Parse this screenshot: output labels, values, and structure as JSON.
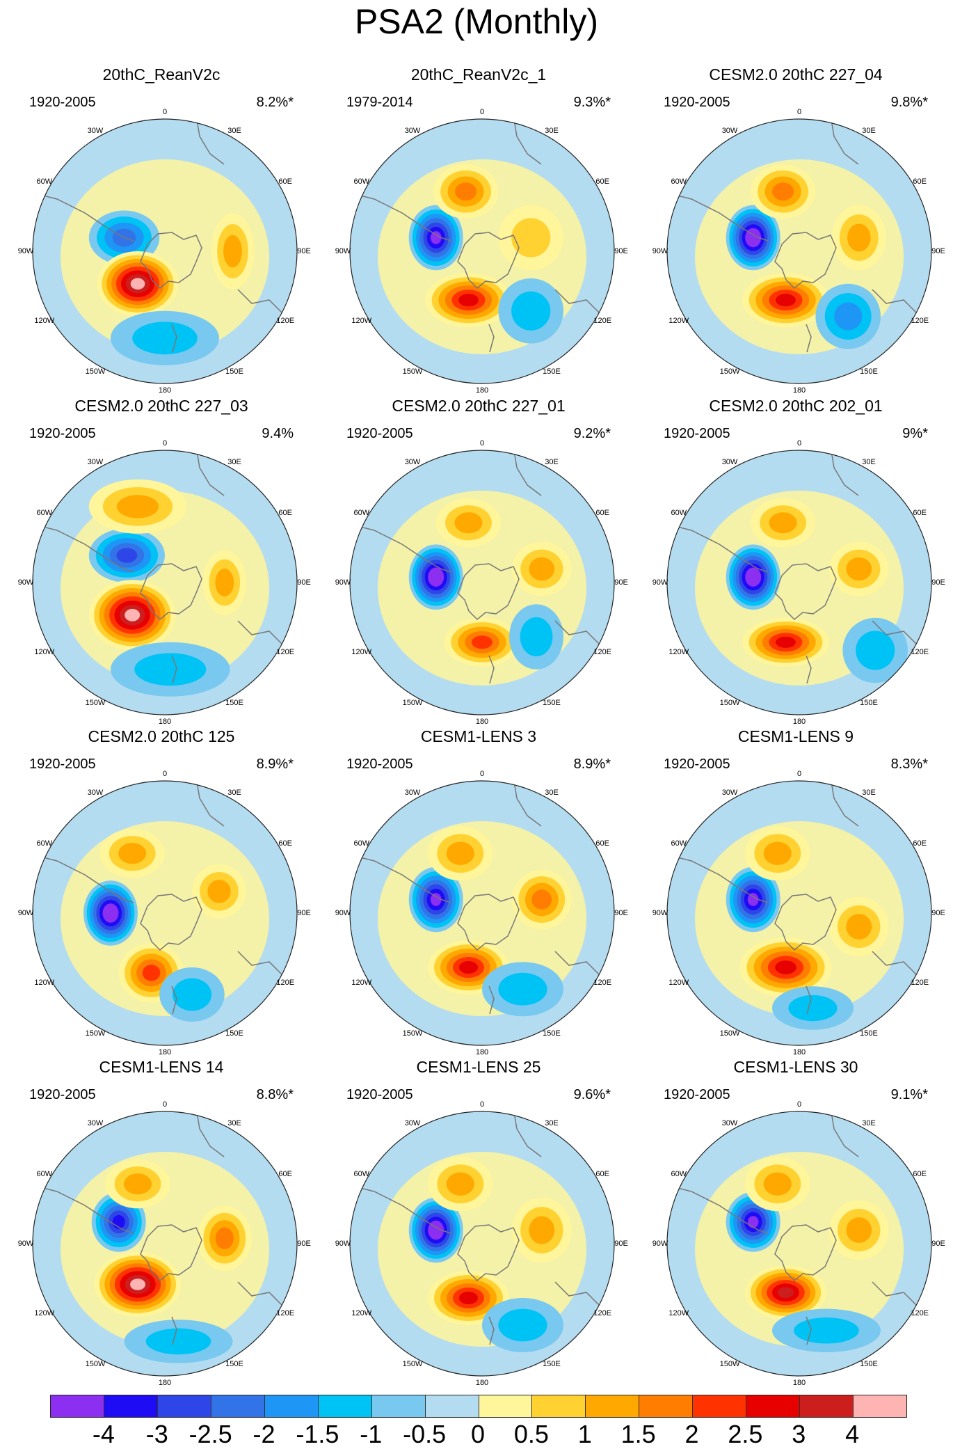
{
  "figure_title": "PSA2 (Monthly)",
  "longitude_labels": [
    "0",
    "30E",
    "60E",
    "90E",
    "120E",
    "150E",
    "180",
    "150W",
    "120W",
    "90W",
    "60W",
    "30W"
  ],
  "panels": [
    {
      "title": "20thC_ReanV2c",
      "period": "1920-2005",
      "percent": "8.2%*"
    },
    {
      "title": "20thC_ReanV2c_1",
      "period": "1979-2014",
      "percent": "9.3%*"
    },
    {
      "title": "CESM2.0 20thC 227_04",
      "period": "1920-2005",
      "percent": "9.8%*"
    },
    {
      "title": "CESM2.0 20thC 227_03",
      "period": "1920-2005",
      "percent": "9.4%"
    },
    {
      "title": "CESM2.0 20thC 227_01",
      "period": "1920-2005",
      "percent": "9.2%*"
    },
    {
      "title": "CESM2.0 20thC 202_01",
      "period": "1920-2005",
      "percent": "9%*"
    },
    {
      "title": "CESM2.0 20thC 125",
      "period": "1920-2005",
      "percent": "8.9%*"
    },
    {
      "title": "CESM1-LENS 3",
      "period": "1920-2005",
      "percent": "8.9%*"
    },
    {
      "title": "CESM1-LENS 9",
      "period": "1920-2005",
      "percent": "8.3%*"
    },
    {
      "title": "CESM1-LENS 14",
      "period": "1920-2005",
      "percent": "8.8%*"
    },
    {
      "title": "CESM1-LENS 25",
      "period": "1920-2005",
      "percent": "9.6%*"
    },
    {
      "title": "CESM1-LENS 30",
      "period": "1920-2005",
      "percent": "9.1%*"
    }
  ],
  "colorbar": {
    "colors": [
      "#8c2ff0",
      "#1e0cf5",
      "#2e45e8",
      "#3274e8",
      "#1e96f5",
      "#00c3f5",
      "#78c8f0",
      "#b4dcf0",
      "#fff59b",
      "#ffd232",
      "#ffa800",
      "#ff7d00",
      "#ff3200",
      "#e60000",
      "#cd1e1e",
      "#ffb4b4"
    ],
    "tick_labels": [
      "-4",
      "-3",
      "-2.5",
      "-2",
      "-1.5",
      "-1",
      "-0.5",
      "0",
      "0.5",
      "1",
      "1.5",
      "2",
      "2.5",
      "3",
      "4"
    ]
  }
}
